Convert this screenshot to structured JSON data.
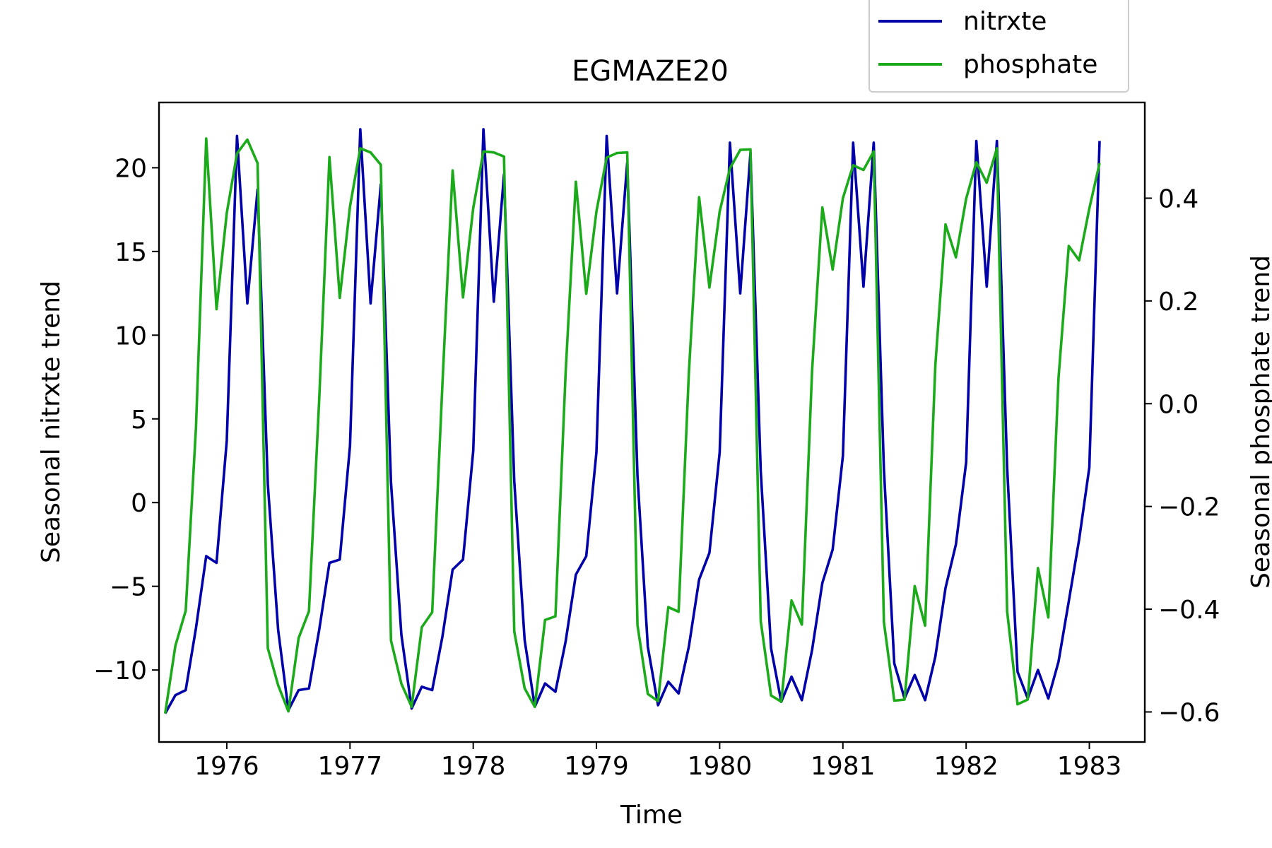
{
  "chart_data": {
    "type": "line",
    "title": "EGMAZE20",
    "xlabel": "Time",
    "ylabel": "Seasonal nitrxte trend",
    "y2label": "Seasonal phosphate trend",
    "xlim": [
      1975.45,
      1983.45
    ],
    "ylim": [
      -14.3,
      23.9
    ],
    "y2lim": [
      -0.6585,
      0.5863
    ],
    "x_ticks": [
      1976,
      1977,
      1978,
      1979,
      1980,
      1981,
      1982,
      1983
    ],
    "y_ticks": [
      -10,
      -5,
      0,
      5,
      10,
      15,
      20
    ],
    "y2_ticks": [
      -0.6,
      -0.4,
      -0.2,
      0.0,
      0.2,
      0.4
    ],
    "y2_tick_labels": [
      "−0.6",
      "−0.4",
      "−0.2",
      "0.0",
      "0.2",
      "0.4"
    ],
    "grid": false,
    "legend_position": "top-right (above plot)",
    "series": [
      {
        "name": "nitrxte",
        "axis": "left",
        "color": "#0000aa",
        "x": [
          1975.5,
          1975.583,
          1975.667,
          1975.75,
          1975.833,
          1975.917,
          1976.0,
          1976.083,
          1976.167,
          1976.25,
          1976.333,
          1976.417,
          1976.5,
          1976.583,
          1976.667,
          1976.75,
          1976.833,
          1976.917,
          1977.0,
          1977.083,
          1977.167,
          1977.25,
          1977.333,
          1977.417,
          1977.5,
          1977.583,
          1977.667,
          1977.75,
          1977.833,
          1977.917,
          1978.0,
          1978.083,
          1978.167,
          1978.25,
          1978.333,
          1978.417,
          1978.5,
          1978.583,
          1978.667,
          1978.75,
          1978.833,
          1978.917,
          1979.0,
          1979.083,
          1979.167,
          1979.25,
          1979.333,
          1979.417,
          1979.5,
          1979.583,
          1979.667,
          1979.75,
          1979.833,
          1979.917,
          1980.0,
          1980.083,
          1980.167,
          1980.25,
          1980.333,
          1980.417,
          1980.5,
          1980.583,
          1980.667,
          1980.75,
          1980.833,
          1980.917,
          1981.0,
          1981.083,
          1981.167,
          1981.25,
          1981.333,
          1981.417,
          1981.5,
          1981.583,
          1981.667,
          1981.75,
          1981.833,
          1981.917,
          1982.0,
          1982.083,
          1982.167,
          1982.25,
          1982.333,
          1982.417,
          1982.5,
          1982.583,
          1982.667,
          1982.75,
          1982.833,
          1982.917,
          1983.0,
          1983.083
        ],
        "values": [
          -12.6,
          -11.5,
          -11.2,
          -7.5,
          -3.2,
          -3.6,
          3.7,
          21.9,
          11.9,
          18.7,
          1.1,
          -7.6,
          -12.4,
          -11.2,
          -11.1,
          -7.6,
          -3.6,
          -3.4,
          3.4,
          22.3,
          11.9,
          19.0,
          1.2,
          -7.9,
          -12.3,
          -11.0,
          -11.2,
          -8.0,
          -4.0,
          -3.4,
          3.1,
          22.3,
          12.0,
          19.6,
          1.3,
          -8.2,
          -12.2,
          -10.8,
          -11.3,
          -8.3,
          -4.3,
          -3.2,
          3.0,
          21.9,
          12.5,
          20.3,
          1.6,
          -8.6,
          -12.1,
          -10.7,
          -11.4,
          -8.6,
          -4.6,
          -3.0,
          3.0,
          21.5,
          12.5,
          20.9,
          1.9,
          -8.7,
          -11.9,
          -10.4,
          -11.8,
          -8.8,
          -4.8,
          -2.8,
          2.8,
          21.5,
          12.9,
          21.5,
          2.0,
          -9.6,
          -11.7,
          -10.3,
          -11.8,
          -9.2,
          -5.1,
          -2.5,
          2.4,
          21.6,
          12.9,
          21.6,
          2.1,
          -10.1,
          -11.7,
          -10.0,
          -11.7,
          -9.5,
          -5.9,
          -2.2,
          2.1,
          21.6
        ]
      },
      {
        "name": "phosphate",
        "axis": "right",
        "color": "#1aaa1a",
        "x": [
          1975.5,
          1975.583,
          1975.667,
          1975.75,
          1975.833,
          1975.917,
          1976.0,
          1976.083,
          1976.167,
          1976.25,
          1976.333,
          1976.417,
          1976.5,
          1976.583,
          1976.667,
          1976.75,
          1976.833,
          1976.917,
          1977.0,
          1977.083,
          1977.167,
          1977.25,
          1977.333,
          1977.417,
          1977.5,
          1977.583,
          1977.667,
          1977.75,
          1977.833,
          1977.917,
          1978.0,
          1978.083,
          1978.167,
          1978.25,
          1978.333,
          1978.417,
          1978.5,
          1978.583,
          1978.667,
          1978.75,
          1978.833,
          1978.917,
          1979.0,
          1979.083,
          1979.167,
          1979.25,
          1979.333,
          1979.417,
          1979.5,
          1979.583,
          1979.667,
          1979.75,
          1979.833,
          1979.917,
          1980.0,
          1980.083,
          1980.167,
          1980.25,
          1980.333,
          1980.417,
          1980.5,
          1980.583,
          1980.667,
          1980.75,
          1980.833,
          1980.917,
          1981.0,
          1981.083,
          1981.167,
          1981.25,
          1981.333,
          1981.417,
          1981.5,
          1981.583,
          1981.667,
          1981.75,
          1981.833,
          1981.917,
          1982.0,
          1982.083,
          1982.167,
          1982.25,
          1982.333,
          1982.417,
          1982.5,
          1982.583,
          1982.667,
          1982.75,
          1982.833,
          1982.917,
          1983.0,
          1983.083
        ],
        "values": [
          -0.603,
          -0.471,
          -0.403,
          -0.047,
          0.516,
          0.184,
          0.371,
          0.487,
          0.514,
          0.468,
          -0.476,
          -0.548,
          -0.599,
          -0.456,
          -0.404,
          0.008,
          0.48,
          0.206,
          0.384,
          0.497,
          0.489,
          0.465,
          -0.461,
          -0.545,
          -0.59,
          -0.435,
          -0.406,
          0.039,
          0.454,
          0.207,
          0.381,
          0.491,
          0.489,
          0.481,
          -0.443,
          -0.554,
          -0.59,
          -0.421,
          -0.414,
          0.06,
          0.432,
          0.214,
          0.374,
          0.479,
          0.488,
          0.489,
          -0.431,
          -0.565,
          -0.579,
          -0.396,
          -0.405,
          0.06,
          0.402,
          0.226,
          0.374,
          0.458,
          0.494,
          0.495,
          -0.423,
          -0.568,
          -0.58,
          -0.383,
          -0.43,
          0.065,
          0.382,
          0.261,
          0.4,
          0.464,
          0.455,
          0.491,
          -0.425,
          -0.578,
          -0.576,
          -0.355,
          -0.432,
          0.075,
          0.349,
          0.285,
          0.399,
          0.47,
          0.43,
          0.497,
          -0.404,
          -0.585,
          -0.576,
          -0.32,
          -0.416,
          0.05,
          0.307,
          0.279,
          0.38,
          0.468
        ]
      }
    ]
  }
}
